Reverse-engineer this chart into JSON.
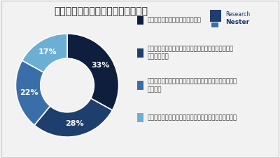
{
  "title": "成長要因の貢献一炭酸ジメチル市場",
  "slices": [
    33,
    28,
    22,
    17
  ],
  "labels_pct": [
    "33%",
    "28%",
    "22%",
    "17%"
  ],
  "colors": [
    "#0d1f3c",
    "#1e3f6e",
    "#3a6ea8",
    "#6cafd4"
  ],
  "legend_labels": [
    "エレクトロニクスの需要の高まり",
    "業界の主要企業によるコラボレーションとパートナー\nシップの増加",
    "さまざまなエンドユーザーからのポリカーボネートの需\n要の増加",
    "酸素化燃料添加剤としての炭酸ジメチルの使用量の増加"
  ],
  "background_color": "#f2f2f2",
  "wedge_edge_color": "#ffffff",
  "title_fontsize": 10,
  "legend_fontsize": 6.2,
  "pct_fontsize": 8,
  "donut_width": 0.48,
  "start_angle": 90
}
